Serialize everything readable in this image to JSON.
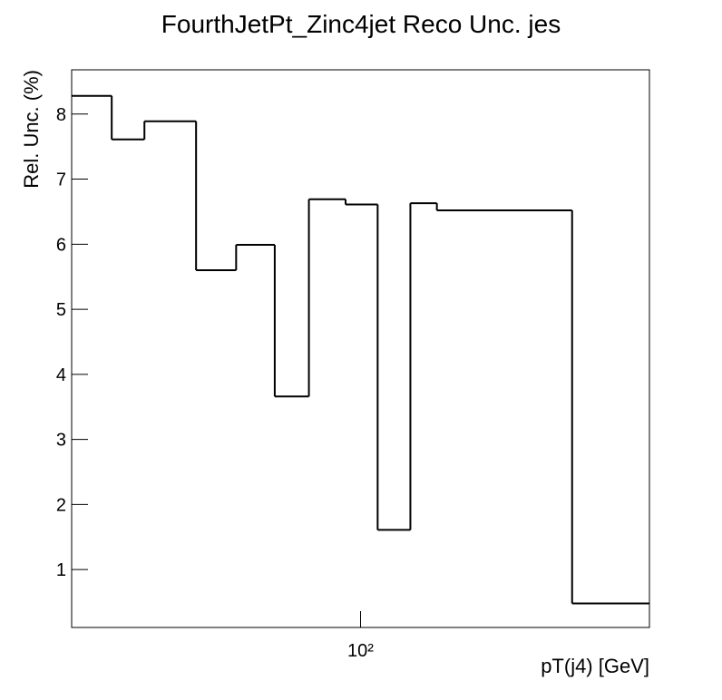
{
  "chart_data": {
    "type": "histogram",
    "title": "FourthJetPt_Zinc4jet Reco Unc. jes",
    "xlabel": "pT(j4) [GeV]",
    "ylabel": "Rel. Unc. (%)",
    "bins": [
      20,
      25,
      30,
      40,
      50,
      62,
      75,
      92,
      110,
      132,
      153,
      325,
      500
    ],
    "values": [
      8.28,
      7.61,
      7.89,
      5.6,
      5.99,
      3.66,
      6.69,
      6.61,
      1.61,
      6.63,
      6.52,
      0.48
    ],
    "color": "#000000",
    "xscale": "log",
    "xlim": [
      20,
      500
    ],
    "xticks": [
      {
        "value": 100,
        "label": "10²"
      }
    ],
    "ylim": [
      0.11,
      8.68
    ],
    "yticks": [
      1,
      2,
      3,
      4,
      5,
      6,
      7,
      8
    ]
  }
}
